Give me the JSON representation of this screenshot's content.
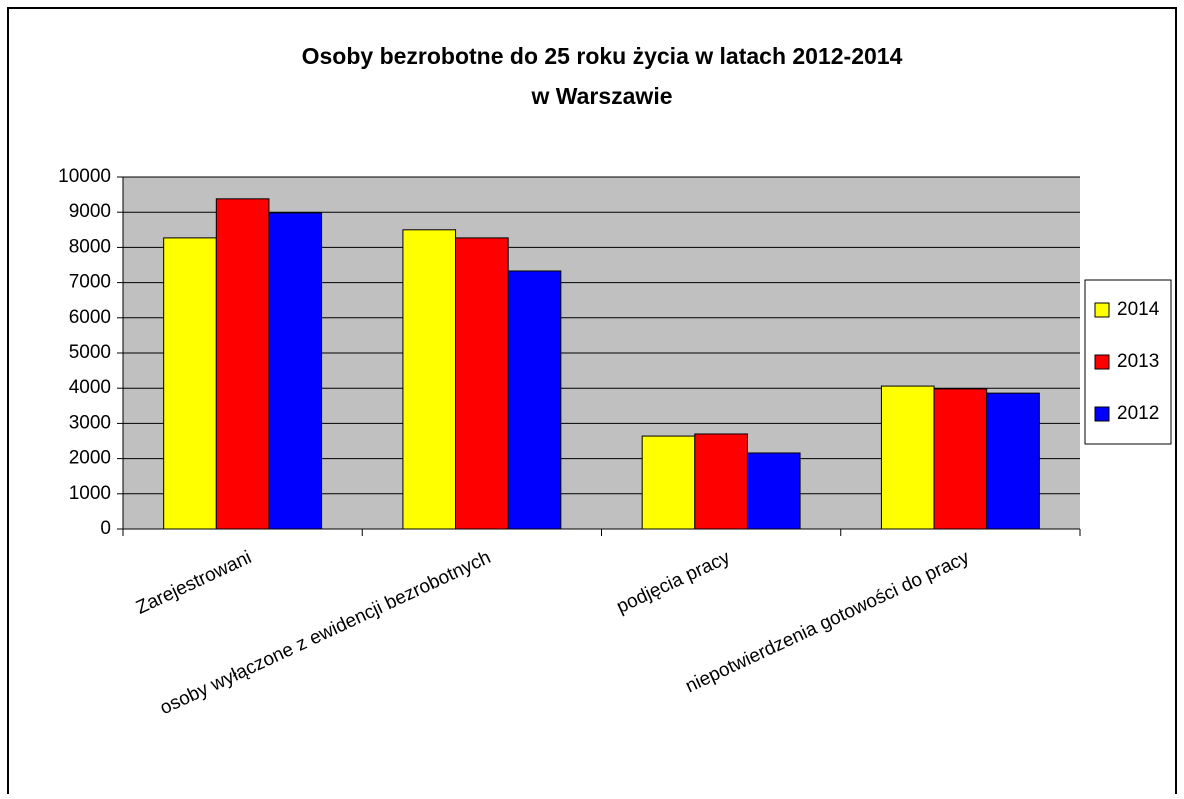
{
  "chart_data": {
    "type": "bar",
    "title": [
      "Osoby bezrobotne do 25 roku życia w latach 2012-2014",
      "w Warszawie"
    ],
    "categories": [
      "Zarejestrowani",
      "osoby wyłączone z ewidencji bezrobotnych",
      "podjęcia pracy",
      "niepotwierdzenia gotowości do pracy"
    ],
    "series": [
      {
        "name": "2014",
        "color": "#ffff00",
        "values": [
          8270,
          8500,
          2640,
          4060
        ]
      },
      {
        "name": "2013",
        "color": "#ff0000",
        "values": [
          9380,
          8270,
          2700,
          3980
        ]
      },
      {
        "name": "2012",
        "color": "#0000ff",
        "values": [
          8980,
          7330,
          2160,
          3860
        ]
      }
    ],
    "ylim": [
      0,
      10000
    ],
    "yticks": [
      0,
      1000,
      2000,
      3000,
      4000,
      5000,
      6000,
      7000,
      8000,
      9000,
      10000
    ],
    "grid": true,
    "legend": "right"
  }
}
